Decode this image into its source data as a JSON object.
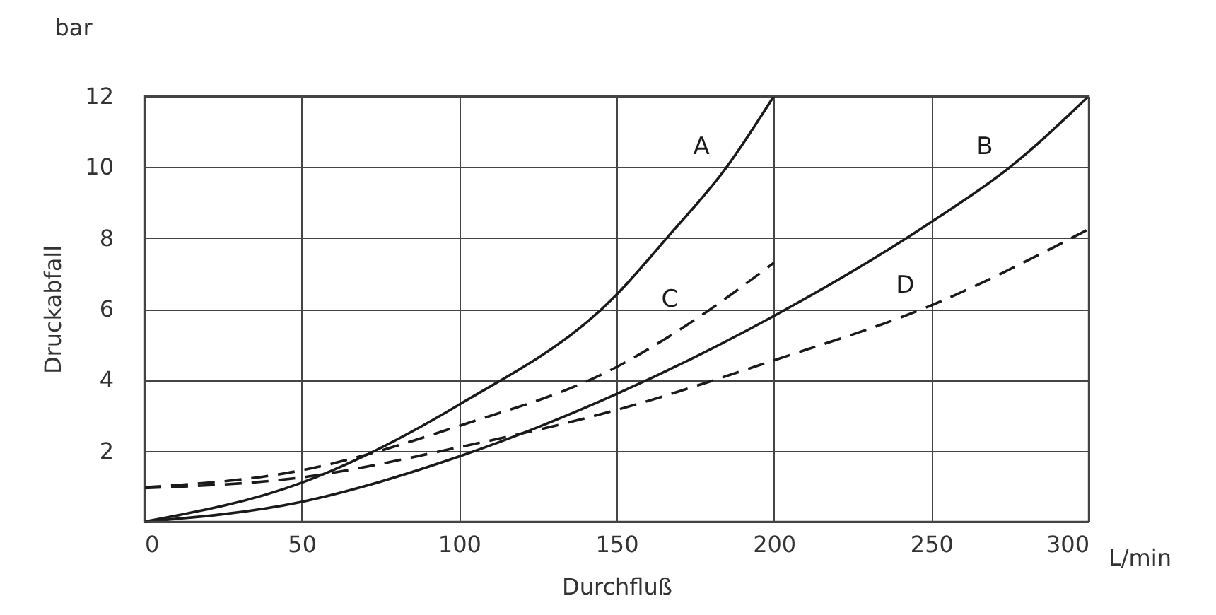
{
  "chart_data": {
    "type": "line",
    "xlabel": "Durchfluß",
    "ylabel": "Druckabfall",
    "xlim": [
      0,
      300
    ],
    "ylim": [
      0,
      12
    ],
    "xticks": [
      0,
      50,
      100,
      150,
      200,
      250,
      300
    ],
    "yticks": [
      {
        "value": 0,
        "label": null
      },
      2,
      4,
      6,
      8,
      10,
      12
    ],
    "grid": true,
    "marker": "none",
    "series": [
      {
        "name": "A",
        "color": "#1a1a1a",
        "line_style": "solid",
        "x": [
          0,
          50,
          100,
          150,
          166,
          185,
          200
        ],
        "values": [
          0,
          1.1,
          3.3,
          6.4,
          8,
          10,
          12
        ]
      },
      {
        "name": "B",
        "color": "#1a1a1a",
        "line_style": "solid",
        "x": [
          0,
          50,
          100,
          150,
          200,
          250,
          275,
          300
        ],
        "values": [
          0,
          0.56,
          1.84,
          3.6,
          5.8,
          8.45,
          10,
          12
        ]
      },
      {
        "name": "C",
        "color": "#1a1a1a",
        "line_style": "dashed",
        "x": [
          0,
          50,
          100,
          150,
          175,
          200
        ],
        "values": [
          0.97,
          1.45,
          2.7,
          4.36,
          5.7,
          7.3
        ]
      },
      {
        "name": "D",
        "color": "#1a1a1a",
        "line_style": "dashed",
        "x": [
          0,
          50,
          100,
          150,
          200,
          250,
          300
        ],
        "values": [
          0.95,
          1.25,
          2.1,
          3.15,
          4.55,
          6.1,
          8.25
        ]
      }
    ],
    "annotations": [
      "bar",
      "L/min"
    ]
  }
}
